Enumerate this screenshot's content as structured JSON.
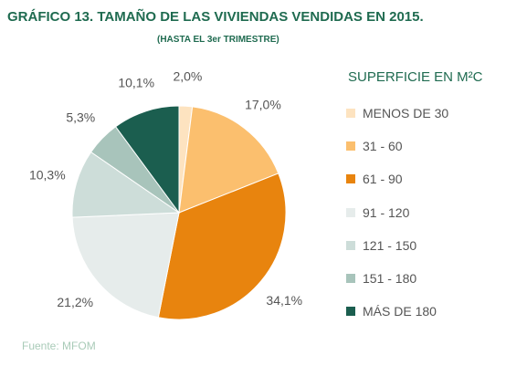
{
  "header": {
    "title": "GRÁFICO 13. TAMAÑO DE LAS VIVIENDAS VENDIDAS EN 2015.",
    "subtitle": "(HASTA EL 3er TRIMESTRE)"
  },
  "legend": {
    "title": "SUPERFICIE EN M²C"
  },
  "source": "Fuente: MFOM",
  "chart_data": {
    "type": "pie",
    "title": "GRÁFICO 13. TAMAÑO DE LAS VIVIENDAS VENDIDAS EN 2015.",
    "subtitle": "(HASTA EL 3er TRIMESTRE)",
    "legend_title": "SUPERFICIE EN M²C",
    "legend_position": "right",
    "categories": [
      "MENOS DE 30",
      "31 - 60",
      "61 - 90",
      "91 - 120",
      "121 - 150",
      "151 - 180",
      "MÁS DE 180"
    ],
    "values": [
      2.0,
      17.0,
      34.1,
      21.2,
      10.3,
      5.3,
      10.1
    ],
    "value_labels": [
      "2,0%",
      "17,0%",
      "34,1%",
      "21,2%",
      "10,3%",
      "5,3%",
      "10,1%"
    ],
    "colors": [
      "#fde3c0",
      "#fbbf6e",
      "#e8840e",
      "#e6eceb",
      "#cdddd9",
      "#a8c4bb",
      "#1b5e4f"
    ]
  }
}
